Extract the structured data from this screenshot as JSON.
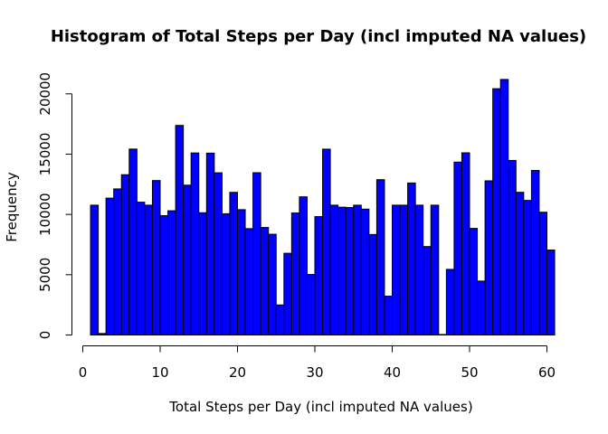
{
  "chart_data": {
    "type": "bar",
    "title": "Histogram of Total Steps per Day (incl imputed NA values)",
    "xlabel": "Total Steps per Day (incl imputed NA values)",
    "ylabel": "Frequency",
    "xlim": [
      0,
      61
    ],
    "ylim": [
      0,
      21194
    ],
    "x_ticks": [
      "0",
      "10",
      "20",
      "30",
      "40",
      "50",
      "60"
    ],
    "y_ticks": [
      "0",
      "5000",
      "10000",
      "15000",
      "20000"
    ],
    "bar_color": "#0000ff",
    "bar_border": "#000000",
    "bin_start": 0,
    "bin_width": 1,
    "values": [
      0,
      10766,
      126,
      11352,
      12116,
      13294,
      15420,
      11015,
      10766,
      12811,
      9900,
      10304,
      17382,
      12426,
      15098,
      10139,
      15084,
      13452,
      10056,
      11829,
      10395,
      8821,
      13460,
      8918,
      8355,
      2492,
      6778,
      10119,
      11458,
      5018,
      9819,
      15414,
      10766,
      10600,
      10571,
      10766,
      10439,
      8334,
      12883,
      3219,
      10766,
      10766,
      12608,
      10765,
      7336,
      10766,
      41,
      5441,
      14339,
      15110,
      8841,
      4472,
      12787,
      20427,
      21194,
      14478,
      11834,
      11162,
      13646,
      10183,
      7047
    ]
  }
}
